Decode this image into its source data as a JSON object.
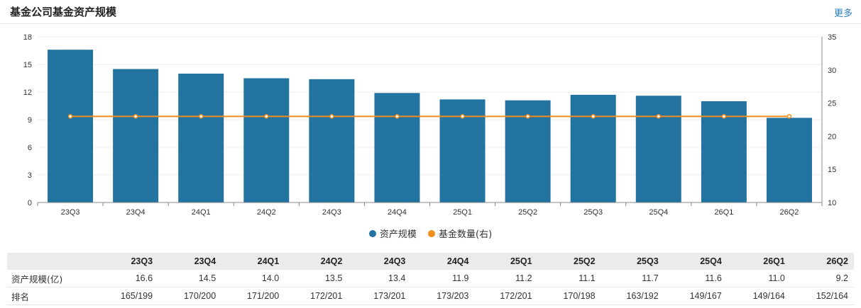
{
  "header": {
    "title": "基金公司基金资产规模",
    "more": "更多"
  },
  "colors": {
    "bar": "#22739f",
    "line": "#f38d1e",
    "grid": "#ececec",
    "link": "#2a7fc0"
  },
  "chart_data": {
    "type": "bar",
    "categories": [
      "23Q3",
      "23Q4",
      "24Q1",
      "24Q2",
      "24Q3",
      "24Q4",
      "25Q1",
      "25Q2",
      "25Q3",
      "25Q4",
      "26Q1",
      "26Q2"
    ],
    "series": [
      {
        "name": "资产规模",
        "type": "bar",
        "axis": "left",
        "values": [
          16.6,
          14.5,
          14.0,
          13.5,
          13.4,
          11.9,
          11.2,
          11.1,
          11.7,
          11.6,
          11.0,
          9.2
        ]
      },
      {
        "name": "基金数量(右)",
        "type": "line",
        "axis": "right",
        "values": [
          23,
          23,
          23,
          23,
          23,
          23,
          23,
          23,
          23,
          23,
          23,
          23
        ]
      }
    ],
    "ylim": [
      0,
      18
    ],
    "yticks": [
      0,
      3,
      6,
      9,
      12,
      15,
      18
    ],
    "y2lim": [
      10,
      35
    ],
    "y2ticks": [
      10,
      15,
      20,
      25,
      30,
      35
    ],
    "grid": true,
    "legend": "bottom-center"
  },
  "table": {
    "header_label": "",
    "rows": [
      {
        "label": "资产规模(亿)",
        "values": [
          "16.6",
          "14.5",
          "14.0",
          "13.5",
          "13.4",
          "11.9",
          "11.2",
          "11.1",
          "11.7",
          "11.6",
          "11.0",
          "9.2"
        ]
      },
      {
        "label": "排名",
        "values": [
          "165/199",
          "170/200",
          "171/200",
          "172/201",
          "173/201",
          "173/203",
          "172/201",
          "170/198",
          "163/192",
          "149/167",
          "149/164",
          "152/164"
        ]
      }
    ]
  }
}
